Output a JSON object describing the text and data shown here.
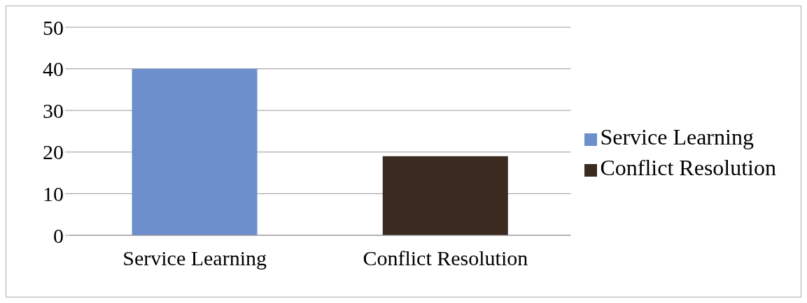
{
  "chart_data": {
    "type": "bar",
    "categories": [
      "Service Learning",
      "Conflict Resolution"
    ],
    "series": [
      {
        "name": "Service Learning",
        "color": "#6d8fcc",
        "values": [
          40,
          null
        ]
      },
      {
        "name": "Conflict Resolution",
        "color": "#3b2a20",
        "values": [
          null,
          19
        ]
      }
    ],
    "stacked": true,
    "ylim": [
      0,
      50
    ],
    "yticks": [
      0,
      10,
      20,
      30,
      40,
      50
    ],
    "grid": "y",
    "legend": "right"
  }
}
